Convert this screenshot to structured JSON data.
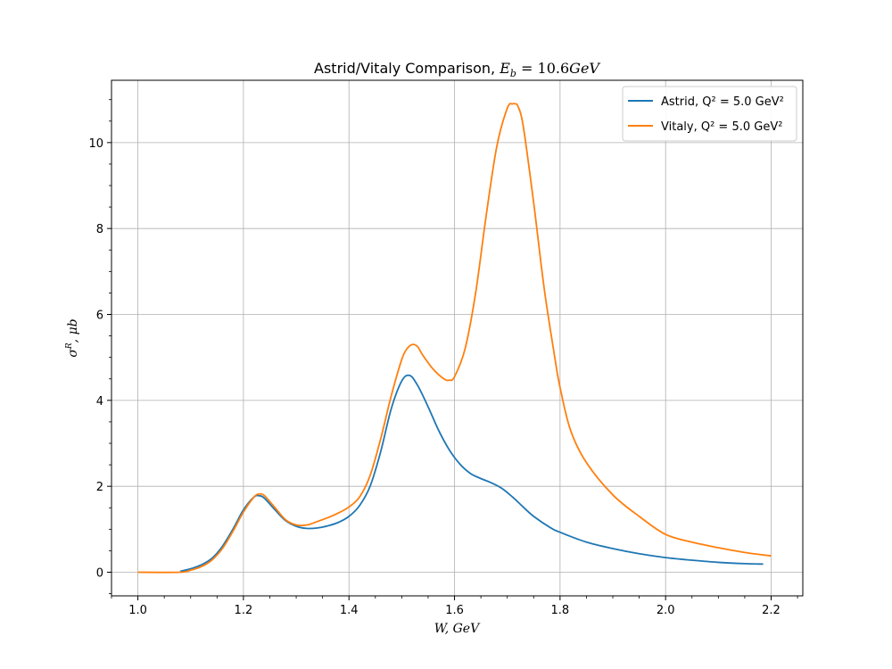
{
  "chart_data": {
    "type": "line",
    "title_prefix": "Astrid/Vitaly Comparison, ",
    "title_math": "E_b = 10.6GeV",
    "xlabel": "W, GeV",
    "ylabel": "σ^R, μb",
    "xlim": [
      0.95,
      2.26
    ],
    "ylim": [
      -0.55,
      11.45
    ],
    "xticks": [
      1.0,
      1.2,
      1.4,
      1.6,
      1.8,
      2.0,
      2.2
    ],
    "xtick_labels": [
      "1.0",
      "1.2",
      "1.4",
      "1.6",
      "1.8",
      "2.0",
      "2.2"
    ],
    "yticks": [
      0,
      2,
      4,
      6,
      8,
      10
    ],
    "ytick_labels": [
      "0",
      "2",
      "4",
      "6",
      "8",
      "10"
    ],
    "grid": true,
    "legend_position": "top-right",
    "series": [
      {
        "name": "Astrid, Q² = 5.0 GeV²",
        "color": "#1f77b4",
        "x": [
          1.08,
          1.1,
          1.12,
          1.14,
          1.16,
          1.18,
          1.2,
          1.22,
          1.23,
          1.24,
          1.26,
          1.28,
          1.3,
          1.32,
          1.34,
          1.36,
          1.38,
          1.4,
          1.42,
          1.44,
          1.46,
          1.48,
          1.5,
          1.515,
          1.53,
          1.55,
          1.57,
          1.59,
          1.61,
          1.63,
          1.65,
          1.67,
          1.69,
          1.71,
          1.73,
          1.75,
          1.78,
          1.8,
          1.85,
          1.9,
          1.95,
          2.0,
          2.05,
          2.1,
          2.15,
          2.185
        ],
        "y": [
          0.02,
          0.08,
          0.17,
          0.32,
          0.6,
          1.0,
          1.45,
          1.75,
          1.78,
          1.72,
          1.45,
          1.2,
          1.07,
          1.02,
          1.03,
          1.08,
          1.16,
          1.3,
          1.55,
          2.0,
          2.8,
          3.8,
          4.45,
          4.58,
          4.35,
          3.85,
          3.3,
          2.85,
          2.52,
          2.3,
          2.18,
          2.08,
          1.95,
          1.75,
          1.52,
          1.3,
          1.05,
          0.93,
          0.7,
          0.55,
          0.43,
          0.34,
          0.28,
          0.23,
          0.2,
          0.19
        ]
      },
      {
        "name": "Vitaly, Q² = 5.0 GeV²",
        "color": "#ff7f0e",
        "x": [
          1.0,
          1.08,
          1.1,
          1.12,
          1.14,
          1.16,
          1.18,
          1.2,
          1.22,
          1.23,
          1.24,
          1.26,
          1.28,
          1.3,
          1.32,
          1.34,
          1.36,
          1.38,
          1.4,
          1.42,
          1.44,
          1.46,
          1.48,
          1.5,
          1.51,
          1.52,
          1.53,
          1.54,
          1.56,
          1.58,
          1.59,
          1.6,
          1.62,
          1.64,
          1.66,
          1.68,
          1.7,
          1.71,
          1.715,
          1.72,
          1.73,
          1.75,
          1.77,
          1.79,
          1.8,
          1.82,
          1.85,
          1.9,
          1.95,
          2.0,
          2.05,
          2.1,
          2.15,
          2.2
        ],
        "y": [
          0.0,
          0.0,
          0.05,
          0.13,
          0.28,
          0.55,
          0.95,
          1.4,
          1.75,
          1.82,
          1.78,
          1.5,
          1.22,
          1.1,
          1.1,
          1.18,
          1.27,
          1.38,
          1.52,
          1.75,
          2.25,
          3.1,
          4.1,
          4.95,
          5.2,
          5.3,
          5.25,
          5.05,
          4.72,
          4.5,
          4.47,
          4.55,
          5.2,
          6.5,
          8.3,
          9.9,
          10.8,
          10.9,
          10.9,
          10.85,
          10.4,
          8.6,
          6.6,
          5.0,
          4.3,
          3.3,
          2.55,
          1.8,
          1.3,
          0.88,
          0.7,
          0.57,
          0.46,
          0.38
        ]
      }
    ]
  }
}
